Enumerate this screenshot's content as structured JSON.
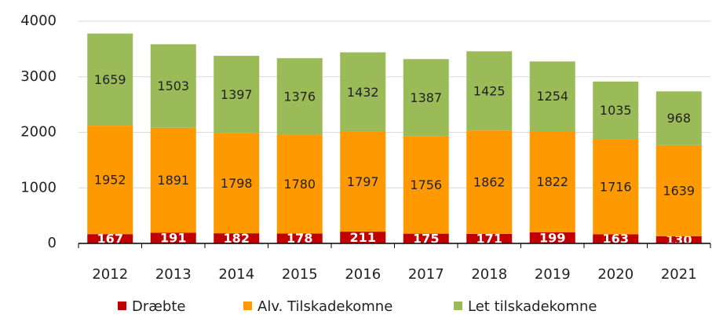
{
  "chart_data": {
    "type": "stacked_bar",
    "categories": [
      "2012",
      "2013",
      "2014",
      "2015",
      "2016",
      "2017",
      "2018",
      "2019",
      "2020",
      "2021"
    ],
    "series": [
      {
        "name": "Dræbte",
        "color": "#c00000",
        "values": [
          167,
          191,
          182,
          178,
          211,
          175,
          171,
          199,
          163,
          130
        ]
      },
      {
        "name": "Alv. Tilskadekomne",
        "color": "#ff9900",
        "values": [
          1952,
          1891,
          1798,
          1780,
          1797,
          1756,
          1862,
          1822,
          1716,
          1639
        ]
      },
      {
        "name": "Let tilskadekomne",
        "color": "#9bbb59",
        "values": [
          1659,
          1503,
          1397,
          1376,
          1432,
          1387,
          1425,
          1254,
          1035,
          968
        ]
      }
    ],
    "ylim": [
      0,
      4000
    ],
    "yticks": [
      0,
      1000,
      2000,
      3000,
      4000
    ],
    "grid": true
  }
}
